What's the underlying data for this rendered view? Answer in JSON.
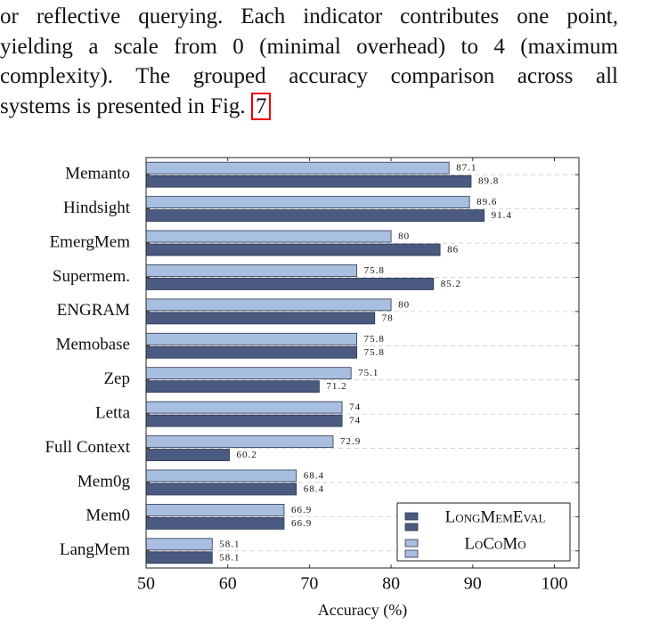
{
  "text_lines": [
    "or reflective querying. Each indicator contributes one point,",
    "yielding a scale from 0 (minimal overhead) to 4 (maximum",
    "complexity). The grouped accuracy comparison across all",
    "systems is presented in Fig."
  ],
  "figure_ref": "7",
  "chart_data": {
    "type": "hbar",
    "x_label": "Accuracy (%)",
    "categories": [
      "Memanto",
      "Hindsight",
      "EmergMem",
      "Supermem.",
      "ENGRAM",
      "Memobase",
      "Zep",
      "Letta",
      "Full Context",
      "Mem0g",
      "Mem0",
      "LangMem"
    ],
    "series": [
      {
        "name": "LongMemEval",
        "color": "#4a5a80",
        "values": [
          89.8,
          91.4,
          86,
          85.2,
          78,
          75.8,
          71.2,
          74,
          60.2,
          68.4,
          66.9,
          58.1
        ]
      },
      {
        "name": "LoCoMo",
        "color": "#a9bfe0",
        "values": [
          87.1,
          89.6,
          80,
          75.8,
          80,
          75.8,
          75.1,
          74,
          72.9,
          68.4,
          66.9,
          58.1
        ]
      }
    ],
    "xlim": [
      50,
      103
    ],
    "xticks": [
      50,
      60,
      70,
      80,
      90,
      100
    ],
    "grid": true,
    "legend": "lower right"
  }
}
